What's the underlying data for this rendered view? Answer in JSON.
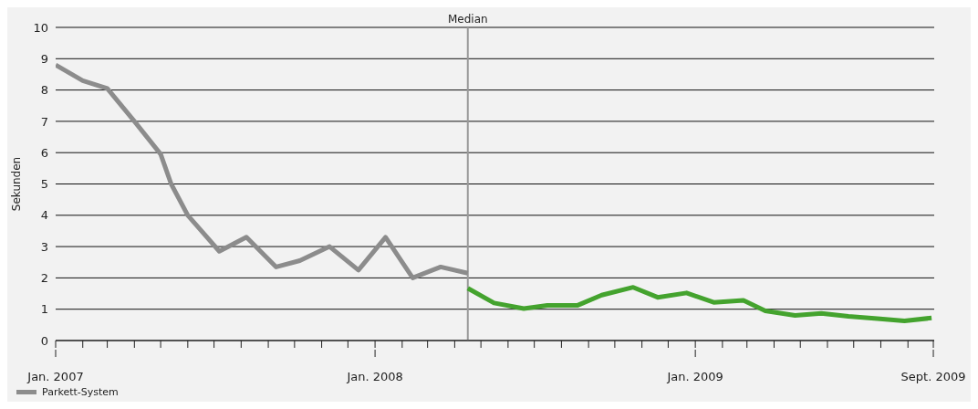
{
  "chart_data": {
    "type": "line",
    "ylabel": "Sekunden",
    "xlim": [
      "2007-01-01",
      "2009-10-01"
    ],
    "xticks": [
      {
        "value": "2007-01-01",
        "label": "Jan. 2007"
      },
      {
        "value": "2007-02-01",
        "label": null
      },
      {
        "value": "2007-03-01",
        "label": null
      },
      {
        "value": "2007-04-01",
        "label": null
      },
      {
        "value": "2007-05-01",
        "label": null
      },
      {
        "value": "2007-06-01",
        "label": null
      },
      {
        "value": "2007-07-01",
        "label": null
      },
      {
        "value": "2007-08-01",
        "label": null
      },
      {
        "value": "2007-09-01",
        "label": null
      },
      {
        "value": "2007-10-01",
        "label": null
      },
      {
        "value": "2007-11-01",
        "label": null
      },
      {
        "value": "2007-12-01",
        "label": null
      },
      {
        "value": "2008-01-01",
        "label": "Jan. 2008"
      },
      {
        "value": "2008-02-01",
        "label": null
      },
      {
        "value": "2008-03-01",
        "label": null
      },
      {
        "value": "2008-04-01",
        "label": null
      },
      {
        "value": "2008-05-01",
        "label": null
      },
      {
        "value": "2008-06-01",
        "label": null
      },
      {
        "value": "2008-07-01",
        "label": null
      },
      {
        "value": "2008-08-01",
        "label": null
      },
      {
        "value": "2008-09-01",
        "label": null
      },
      {
        "value": "2008-10-01",
        "label": null
      },
      {
        "value": "2008-11-01",
        "label": null
      },
      {
        "value": "2008-12-01",
        "label": null
      },
      {
        "value": "2009-01-01",
        "label": "Jan. 2009"
      },
      {
        "value": "2009-02-01",
        "label": null
      },
      {
        "value": "2009-03-01",
        "label": null
      },
      {
        "value": "2009-04-01",
        "label": null
      },
      {
        "value": "2009-05-01",
        "label": null
      },
      {
        "value": "2009-06-01",
        "label": null
      },
      {
        "value": "2009-07-01",
        "label": null
      },
      {
        "value": "2009-08-01",
        "label": null
      },
      {
        "value": "2009-09-01",
        "label": null
      },
      {
        "value": "2009-09-30",
        "label": "Sept. 2009"
      }
    ],
    "ylim": [
      0,
      10
    ],
    "yticks": [
      0,
      1,
      2,
      3,
      4,
      5,
      6,
      7,
      8,
      9,
      10
    ],
    "grid": "y",
    "legend": "bottom left",
    "marker": "none",
    "line_style": "solid",
    "ref_lines": [
      {
        "axis": "x",
        "value": "2008-04-16",
        "label": "Median",
        "color": "#999999"
      }
    ],
    "series": [
      {
        "name": "Parkett-System",
        "color": "#8c8c8c",
        "x": [
          "2007-01-01",
          "2007-02-01",
          "2007-03-01",
          "2007-04-01",
          "2007-05-01",
          "2007-05-13",
          "2007-06-01",
          "2007-07-07",
          "2007-08-07",
          "2007-09-10",
          "2007-10-07",
          "2007-11-10",
          "2007-12-13",
          "2008-01-13",
          "2008-02-13",
          "2008-03-16",
          "2008-04-16"
        ],
        "values": [
          8.8,
          8.3,
          8.05,
          7.0,
          5.95,
          5.0,
          4.0,
          2.85,
          3.3,
          2.35,
          2.55,
          3.0,
          2.25,
          3.3,
          2.0,
          2.35,
          2.15
        ]
      },
      {
        "color": "#44a32e",
        "x": [
          "2008-04-16",
          "2008-05-16",
          "2008-06-19",
          "2008-07-16",
          "2008-08-19",
          "2008-09-16",
          "2008-10-22",
          "2008-11-19",
          "2008-12-22",
          "2009-01-22",
          "2009-02-25",
          "2009-03-22",
          "2009-04-25",
          "2009-05-25",
          "2009-06-25",
          "2009-07-28",
          "2009-08-28",
          "2009-09-28"
        ],
        "values": [
          1.67,
          1.2,
          1.02,
          1.12,
          1.12,
          1.45,
          1.7,
          1.38,
          1.52,
          1.22,
          1.28,
          0.95,
          0.8,
          0.87,
          0.77,
          0.7,
          0.63,
          0.72
        ]
      }
    ]
  }
}
